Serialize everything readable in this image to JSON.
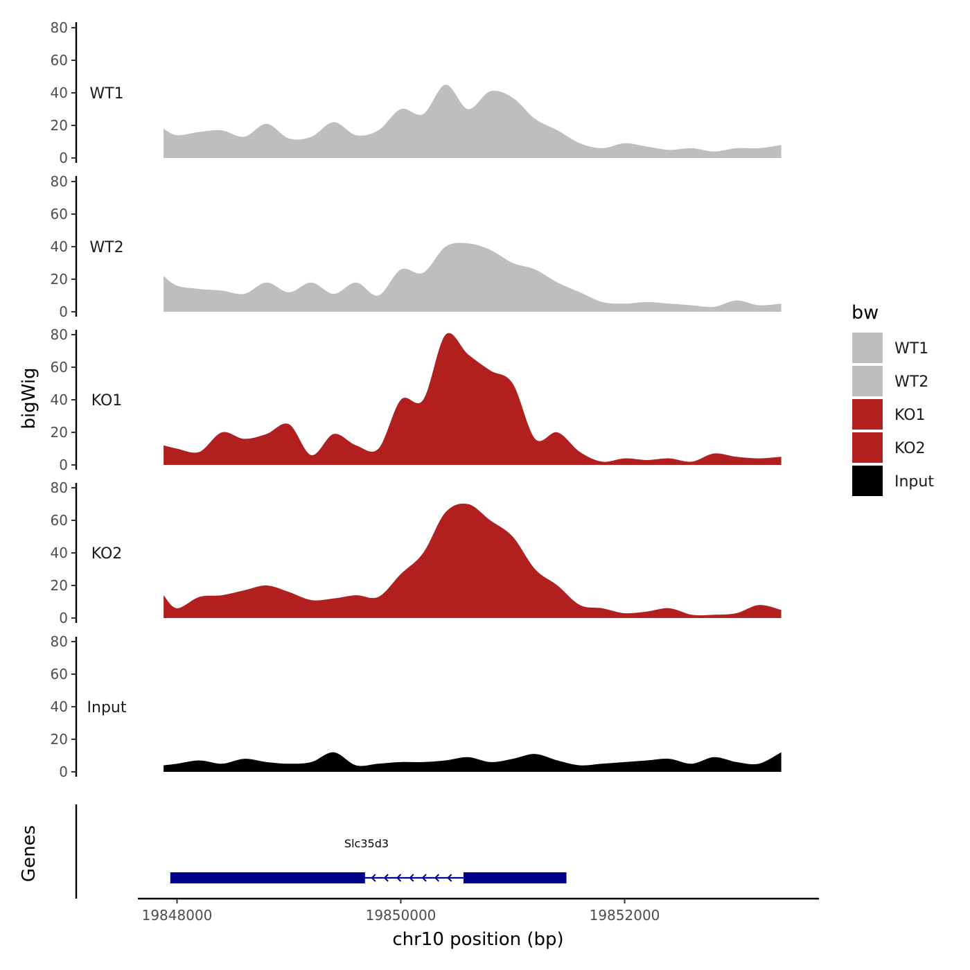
{
  "chart_data": {
    "type": "area",
    "ylabel": "bigWig",
    "xlabel": "chr10 position (bp)",
    "x_range": [
      19847880,
      19853420
    ],
    "x_ticks": [
      19848000,
      19850000,
      19852000
    ],
    "x_tick_labels": [
      "19848000",
      "19850000",
      "19852000"
    ],
    "ylim": [
      0,
      80
    ],
    "y_ticks": [
      0,
      20,
      40,
      60,
      80
    ],
    "y_tick_labels": [
      "0",
      "20",
      "40",
      "60",
      "80"
    ],
    "tracks": [
      {
        "name": "WT1",
        "color": "#bebebe",
        "x": [
          19847880,
          19848000,
          19848200,
          19848400,
          19848600,
          19848800,
          19849000,
          19849200,
          19849400,
          19849600,
          19849800,
          19850000,
          19850200,
          19850400,
          19850600,
          19850800,
          19851000,
          19851200,
          19851400,
          19851600,
          19851800,
          19852000,
          19852200,
          19852400,
          19852600,
          19852800,
          19853000,
          19853200,
          19853400
        ],
        "values": [
          18,
          14,
          16,
          17,
          13,
          21,
          12,
          13,
          22,
          14,
          17,
          30,
          27,
          45,
          30,
          41,
          37,
          24,
          17,
          9,
          6,
          9,
          7,
          5,
          6,
          4,
          6,
          6,
          8
        ]
      },
      {
        "name": "WT2",
        "color": "#bebebe",
        "x": [
          19847880,
          19848000,
          19848200,
          19848400,
          19848600,
          19848800,
          19849000,
          19849200,
          19849400,
          19849600,
          19849800,
          19850000,
          19850200,
          19850400,
          19850600,
          19850800,
          19851000,
          19851200,
          19851400,
          19851600,
          19851800,
          19852000,
          19852200,
          19852400,
          19852600,
          19852800,
          19853000,
          19853200,
          19853400
        ],
        "values": [
          22,
          16,
          14,
          13,
          11,
          18,
          12,
          18,
          11,
          18,
          10,
          26,
          24,
          40,
          42,
          38,
          30,
          26,
          18,
          12,
          6,
          5,
          6,
          5,
          4,
          3,
          7,
          4,
          5
        ]
      },
      {
        "name": "KO1",
        "color": "#b21f1f",
        "x": [
          19847880,
          19848000,
          19848200,
          19848400,
          19848600,
          19848800,
          19849000,
          19849200,
          19849400,
          19849600,
          19849800,
          19850000,
          19850200,
          19850400,
          19850600,
          19850800,
          19851000,
          19851200,
          19851400,
          19851600,
          19851800,
          19852000,
          19852200,
          19852400,
          19852600,
          19852800,
          19853000,
          19853200,
          19853400
        ],
        "values": [
          12,
          10,
          8,
          20,
          16,
          19,
          25,
          6,
          19,
          12,
          10,
          40,
          40,
          80,
          68,
          58,
          50,
          16,
          20,
          8,
          2,
          4,
          3,
          4,
          2,
          7,
          5,
          4,
          5
        ]
      },
      {
        "name": "KO2",
        "color": "#b21f1f",
        "x": [
          19847880,
          19848000,
          19848200,
          19848400,
          19848600,
          19848800,
          19849000,
          19849200,
          19849400,
          19849600,
          19849800,
          19850000,
          19850200,
          19850400,
          19850600,
          19850800,
          19851000,
          19851200,
          19851400,
          19851600,
          19851800,
          19852000,
          19852200,
          19852400,
          19852600,
          19852800,
          19853000,
          19853200,
          19853400
        ],
        "values": [
          14,
          6,
          13,
          14,
          17,
          20,
          16,
          11,
          12,
          14,
          13,
          27,
          40,
          65,
          70,
          60,
          50,
          30,
          20,
          8,
          6,
          3,
          4,
          6,
          2,
          2,
          3,
          8,
          5
        ]
      },
      {
        "name": "Input",
        "color": "#000000",
        "x": [
          19847880,
          19848000,
          19848200,
          19848400,
          19848600,
          19848800,
          19849000,
          19849200,
          19849400,
          19849600,
          19849800,
          19850000,
          19850200,
          19850400,
          19850600,
          19850800,
          19851000,
          19851200,
          19851400,
          19851600,
          19851800,
          19852000,
          19852200,
          19852400,
          19852600,
          19852800,
          19853000,
          19853200,
          19853400
        ],
        "values": [
          4,
          5,
          7,
          5,
          8,
          6,
          5,
          6,
          12,
          4,
          5,
          6,
          6,
          7,
          9,
          6,
          8,
          11,
          7,
          4,
          5,
          6,
          7,
          8,
          5,
          9,
          6,
          5,
          12
        ]
      }
    ],
    "legend": {
      "title": "bw",
      "placement": "right",
      "items": [
        {
          "label": "WT1",
          "color": "#bebebe"
        },
        {
          "label": "WT2",
          "color": "#bebebe"
        },
        {
          "label": "KO1",
          "color": "#b21f1f"
        },
        {
          "label": "KO2",
          "color": "#b21f1f"
        },
        {
          "label": "Input",
          "color": "#000000"
        }
      ]
    },
    "gene_track": {
      "ylabel": "Genes",
      "color": "#00008b",
      "genes": [
        {
          "name": "Slc35d3",
          "strand": "-",
          "start": 19847940,
          "end": 19851480,
          "exons": [
            [
              19847940,
              19849680
            ],
            [
              19850560,
              19851480
            ]
          ]
        }
      ]
    }
  }
}
